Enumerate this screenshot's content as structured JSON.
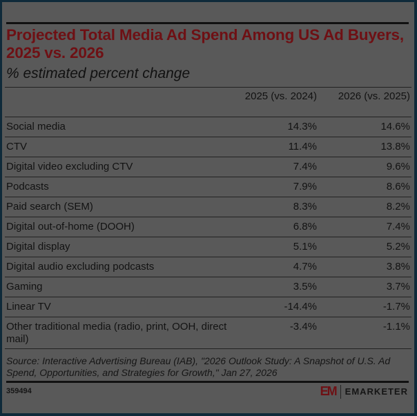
{
  "chart_data": {
    "type": "table",
    "title": "Projected Total Media Ad Spend Among US Ad Buyers, 2025 vs. 2026",
    "subtitle": "% estimated percent change",
    "columns": [
      "",
      "2025 (vs. 2024)",
      "2026 (vs. 2025)"
    ],
    "rows": [
      {
        "label": "Social media",
        "v2025": "14.3%",
        "v2026": "14.6%"
      },
      {
        "label": "CTV",
        "v2025": "11.4%",
        "v2026": "13.8%"
      },
      {
        "label": "Digital video excluding CTV",
        "v2025": "7.4%",
        "v2026": "9.6%"
      },
      {
        "label": "Podcasts",
        "v2025": "7.9%",
        "v2026": "8.6%"
      },
      {
        "label": "Paid search (SEM)",
        "v2025": "8.3%",
        "v2026": "8.2%"
      },
      {
        "label": "Digital out-of-home (DOOH)",
        "v2025": "6.8%",
        "v2026": "7.4%"
      },
      {
        "label": "Digital display",
        "v2025": "5.1%",
        "v2026": "5.2%"
      },
      {
        "label": "Digital audio excluding podcasts",
        "v2025": "4.7%",
        "v2026": "3.8%"
      },
      {
        "label": "Gaming",
        "v2025": "3.5%",
        "v2026": "3.7%"
      },
      {
        "label": "Linear TV",
        "v2025": "-14.4%",
        "v2026": "-1.7%"
      },
      {
        "label": "Other traditional media (radio, print, OOH, direct mail)",
        "v2025": "-3.4%",
        "v2026": "-1.1%"
      }
    ],
    "source": "Source: Interactive Advertising Bureau (IAB), \"2026 Outlook Study: A Snapshot of U.S. Ad Spend, Opportunities, and Strategies for Growth,\" Jan 27, 2026"
  },
  "header": {
    "col1": "2025 (vs. 2024)",
    "col2": "2026 (vs. 2025)"
  },
  "footer": {
    "chart_id": "359494",
    "logo_mark": "EM",
    "logo_text": "EMARKETER"
  },
  "colors": {
    "title": "#6e1014",
    "background": "#595959",
    "frame": "#0f2a3a"
  }
}
